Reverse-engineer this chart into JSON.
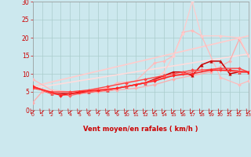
{
  "background_color": "#cce8ee",
  "grid_color": "#aacccc",
  "xlabel": "Vent moyen/en rafales ( km/h )",
  "xlabel_color": "#cc0000",
  "tick_color": "#cc0000",
  "arrow_color": "#cc0000",
  "ylim": [
    0,
    30
  ],
  "xlim": [
    0,
    23
  ],
  "yticks": [
    0,
    5,
    10,
    15,
    20,
    25,
    30
  ],
  "xticks": [
    0,
    1,
    2,
    3,
    4,
    5,
    6,
    7,
    8,
    9,
    10,
    11,
    12,
    13,
    14,
    15,
    16,
    17,
    18,
    19,
    20,
    21,
    22,
    23
  ],
  "series": [
    {
      "x": [
        0,
        1,
        3,
        5,
        7,
        9,
        11,
        13,
        15,
        17,
        19,
        21,
        22,
        23
      ],
      "y": [
        2.0,
        5.0,
        4.5,
        4.5,
        5.0,
        5.5,
        6.0,
        7.0,
        8.5,
        9.5,
        10.5,
        13.5,
        19.5,
        15.0
      ],
      "color": "#ffaaaa",
      "linewidth": 0.9,
      "marker": "D",
      "markersize": 2.0,
      "alpha": 1.0
    },
    {
      "x": [
        0,
        2,
        4,
        6,
        8,
        9,
        11,
        13,
        14,
        15,
        16,
        17,
        18,
        20,
        22,
        23
      ],
      "y": [
        8.5,
        5.5,
        5.0,
        5.5,
        6.0,
        7.5,
        8.0,
        13.0,
        13.5,
        15.0,
        21.5,
        22.0,
        20.5,
        9.0,
        7.0,
        8.0
      ],
      "color": "#ffbbbb",
      "linewidth": 0.9,
      "marker": "D",
      "markersize": 2.0,
      "alpha": 1.0
    },
    {
      "x": [
        0,
        3,
        5,
        7,
        9,
        11,
        13,
        14,
        15,
        16,
        17,
        18,
        20,
        22,
        23
      ],
      "y": [
        6.0,
        5.0,
        5.0,
        5.5,
        6.0,
        7.0,
        8.5,
        10.5,
        15.0,
        21.0,
        30.0,
        20.5,
        20.5,
        20.0,
        15.0
      ],
      "color": "#ffcccc",
      "linewidth": 0.9,
      "marker": "D",
      "markersize": 2.0,
      "alpha": 1.0
    },
    {
      "x": [
        0,
        23
      ],
      "y": [
        6.5,
        20.5
      ],
      "color": "#ffcccc",
      "linewidth": 1.2,
      "marker": null,
      "markersize": 0,
      "alpha": 1.0
    },
    {
      "x": [
        0,
        23
      ],
      "y": [
        6.0,
        15.5
      ],
      "color": "#ffdddd",
      "linewidth": 1.2,
      "marker": null,
      "markersize": 0,
      "alpha": 1.0
    },
    {
      "x": [
        0,
        2,
        4,
        6,
        8,
        10,
        12,
        14,
        15,
        16,
        17,
        18,
        19,
        20,
        21,
        22,
        23
      ],
      "y": [
        6.5,
        4.5,
        4.5,
        5.0,
        5.5,
        6.5,
        7.5,
        9.5,
        10.5,
        10.5,
        9.5,
        12.5,
        13.5,
        13.5,
        10.0,
        10.5,
        10.5
      ],
      "color": "#cc0000",
      "linewidth": 1.1,
      "marker": "^",
      "markersize": 2.5,
      "alpha": 1.0
    },
    {
      "x": [
        0,
        2,
        4,
        6,
        8,
        10,
        12,
        14,
        16,
        17,
        18,
        20,
        22,
        23
      ],
      "y": [
        6.0,
        5.0,
        5.0,
        5.5,
        6.5,
        7.5,
        8.5,
        9.5,
        10.5,
        11.0,
        11.0,
        11.5,
        11.5,
        10.5
      ],
      "color": "#ff4444",
      "linewidth": 1.0,
      "marker": "D",
      "markersize": 2.0,
      "alpha": 1.0
    },
    {
      "x": [
        0,
        2,
        4,
        6,
        8,
        10,
        12,
        14,
        16,
        18,
        20,
        22,
        23
      ],
      "y": [
        6.5,
        4.5,
        4.0,
        5.0,
        5.5,
        6.5,
        7.5,
        9.0,
        10.0,
        11.0,
        11.0,
        10.5,
        10.5
      ],
      "color": "#ff6666",
      "linewidth": 1.0,
      "marker": "D",
      "markersize": 2.0,
      "alpha": 1.0
    },
    {
      "x": [
        0,
        3,
        5,
        7,
        9,
        11,
        13,
        15,
        17,
        19,
        21,
        23
      ],
      "y": [
        6.5,
        4.0,
        5.0,
        5.5,
        6.0,
        7.0,
        8.0,
        9.5,
        10.0,
        11.0,
        11.0,
        10.5
      ],
      "color": "#ff2222",
      "linewidth": 1.0,
      "marker": "D",
      "markersize": 2.0,
      "alpha": 1.0
    }
  ],
  "num_arrows": 24
}
